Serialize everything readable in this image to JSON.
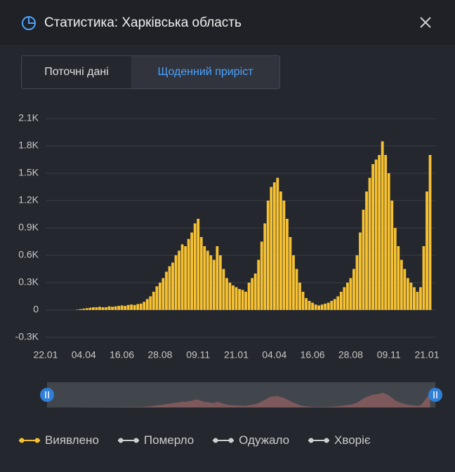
{
  "header": {
    "title": "Статистика: Харківська область"
  },
  "tabs": [
    "Поточні дані",
    "Щоденний приріст"
  ],
  "chart_data": {
    "type": "bar",
    "categories": [
      "22.01",
      null,
      null,
      null,
      null,
      null,
      null,
      null,
      null,
      null,
      null,
      null,
      "04.04",
      null,
      null,
      null,
      null,
      null,
      null,
      null,
      null,
      null,
      null,
      null,
      "16.06",
      null,
      null,
      null,
      null,
      null,
      null,
      null,
      null,
      null,
      null,
      null,
      "28.08",
      null,
      null,
      null,
      null,
      null,
      null,
      null,
      null,
      null,
      null,
      null,
      "09.11",
      null,
      null,
      null,
      null,
      null,
      null,
      null,
      null,
      null,
      null,
      null,
      "21.01",
      null,
      null,
      null,
      null,
      null,
      null,
      null,
      null,
      null,
      null,
      null,
      "04.04",
      null,
      null,
      null,
      null,
      null,
      null,
      null,
      null,
      null,
      null,
      null,
      "16.06",
      null,
      null,
      null,
      null,
      null,
      null,
      null,
      null,
      null,
      null,
      null,
      "28.08",
      null,
      null,
      null,
      null,
      null,
      null,
      null,
      null,
      null,
      null,
      null,
      "09.11",
      null,
      null,
      null,
      null,
      null,
      null,
      null,
      null,
      null,
      null,
      null,
      "21.01",
      null
    ],
    "series": [
      {
        "name": "Виявлено",
        "color": "#f6c132",
        "values": [
          0,
          0,
          0,
          0,
          0,
          0,
          0,
          0,
          0,
          0,
          5,
          10,
          15,
          20,
          25,
          30,
          30,
          35,
          30,
          30,
          40,
          35,
          40,
          45,
          50,
          45,
          55,
          60,
          55,
          65,
          70,
          90,
          120,
          150,
          200,
          260,
          300,
          350,
          420,
          480,
          520,
          600,
          650,
          720,
          700,
          780,
          850,
          950,
          1000,
          800,
          700,
          650,
          600,
          550,
          700,
          600,
          450,
          350,
          300,
          270,
          250,
          230,
          220,
          200,
          300,
          350,
          400,
          550,
          750,
          950,
          1200,
          1350,
          1400,
          1450,
          1300,
          1200,
          1000,
          800,
          600,
          450,
          300,
          200,
          130,
          100,
          80,
          60,
          50,
          60,
          70,
          80,
          100,
          120,
          150,
          200,
          250,
          300,
          350,
          450,
          600,
          850,
          1100,
          1300,
          1450,
          1600,
          1650,
          1700,
          1850,
          1700,
          1500,
          1200,
          900,
          700,
          550,
          450,
          350,
          300,
          250,
          200,
          250,
          700,
          1300,
          1700
        ]
      },
      {
        "name": "Померло",
        "color": "#cfcfcf"
      },
      {
        "name": "Одужало",
        "color": "#cfcfcf"
      },
      {
        "name": "Хворіє",
        "color": "#cfcfcf"
      }
    ],
    "ylim": [
      -300,
      2100
    ],
    "yticks": [
      {
        "value": -300,
        "label": "-0.3K"
      },
      0,
      {
        "value": 300,
        "label": "0.3K"
      },
      {
        "value": 600,
        "label": "0.6K"
      },
      {
        "value": 900,
        "label": "0.9K"
      },
      {
        "value": 1200,
        "label": "1.2K"
      },
      {
        "value": 1500,
        "label": "1.5K"
      },
      {
        "value": 1800,
        "label": "1.8K"
      },
      {
        "value": 2100,
        "label": "2.1K"
      }
    ],
    "grid": true
  }
}
